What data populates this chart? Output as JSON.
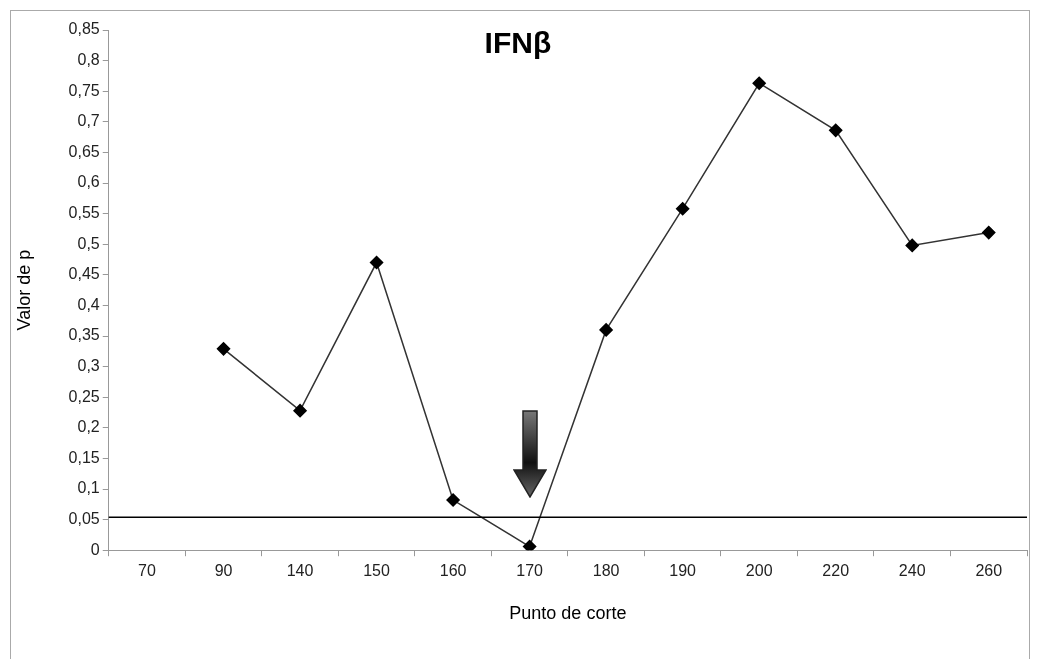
{
  "chart_data": {
    "type": "line",
    "title": "IFNβ",
    "xlabel": "Punto de corte",
    "ylabel": "Valor de p",
    "categories": [
      "70",
      "90",
      "140",
      "150",
      "160",
      "170",
      "180",
      "190",
      "200",
      "220",
      "240",
      "260"
    ],
    "series": [
      {
        "color": "#000000",
        "values": [
          null,
          0.329,
          0.228,
          0.47,
          0.082,
          0.006,
          0.36,
          0.558,
          0.763,
          0.686,
          0.498,
          0.519
        ]
      }
    ],
    "ylim": [
      0,
      0.85
    ],
    "yticks": [
      0,
      {
        "value": 0.05,
        "label": "0,05"
      },
      {
        "value": 0.1,
        "label": "0,1"
      },
      {
        "value": 0.15,
        "label": "0,15"
      },
      {
        "value": 0.2,
        "label": "0,2"
      },
      {
        "value": 0.25,
        "label": "0,25"
      },
      {
        "value": 0.3,
        "label": "0,3"
      },
      {
        "value": 0.35,
        "label": "0,35"
      },
      {
        "value": 0.4,
        "label": "0,4"
      },
      {
        "value": 0.45,
        "label": "0,45"
      },
      {
        "value": 0.5,
        "label": "0,5"
      },
      {
        "value": 0.55,
        "label": "0,55"
      },
      {
        "value": 0.6,
        "label": "0,6"
      },
      {
        "value": 0.65,
        "label": "0,65"
      },
      {
        "value": 0.7,
        "label": "0,7"
      },
      {
        "value": 0.75,
        "label": "0,75"
      },
      {
        "value": 0.8,
        "label": "0,8"
      },
      {
        "value": 0.85,
        "label": "0,85"
      }
    ],
    "ref_lines": [
      {
        "axis": "y",
        "value": 0.054,
        "color": "#000000"
      }
    ],
    "grid": false,
    "legend": false,
    "marker": "diamond",
    "line_style": "solid"
  }
}
